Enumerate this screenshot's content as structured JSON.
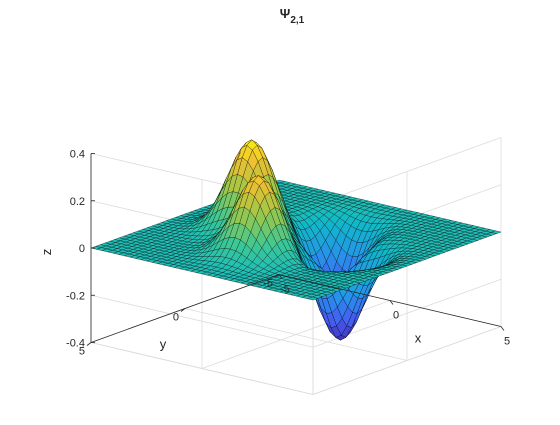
{
  "chart_data": {
    "type": "surface",
    "title": "Ψ",
    "title_subscript": "2,1",
    "xlabel": "x",
    "ylabel": "y",
    "zlabel": "z",
    "xlim": [
      -5,
      5
    ],
    "ylim": [
      -5,
      5
    ],
    "zlim": [
      -0.4,
      0.4
    ],
    "xticks": [
      "-5",
      "0",
      "5"
    ],
    "yticks": [
      "-5",
      "0",
      "5"
    ],
    "zticks": [
      "-0.4",
      "-0.2",
      "0",
      "0.2",
      "0.4"
    ],
    "grid": true,
    "colormap": "parula",
    "edge_color": "#000000",
    "grid_resolution": 41,
    "peaks": [
      {
        "x": 0.0,
        "y": 2.0,
        "z": 0.33
      },
      {
        "x": -2.0,
        "y": 0.0,
        "z": 0.38
      },
      {
        "x": 2.0,
        "y": 0.0,
        "z": -0.38
      },
      {
        "x": 0.0,
        "y": -2.0,
        "z": -0.33
      }
    ]
  }
}
